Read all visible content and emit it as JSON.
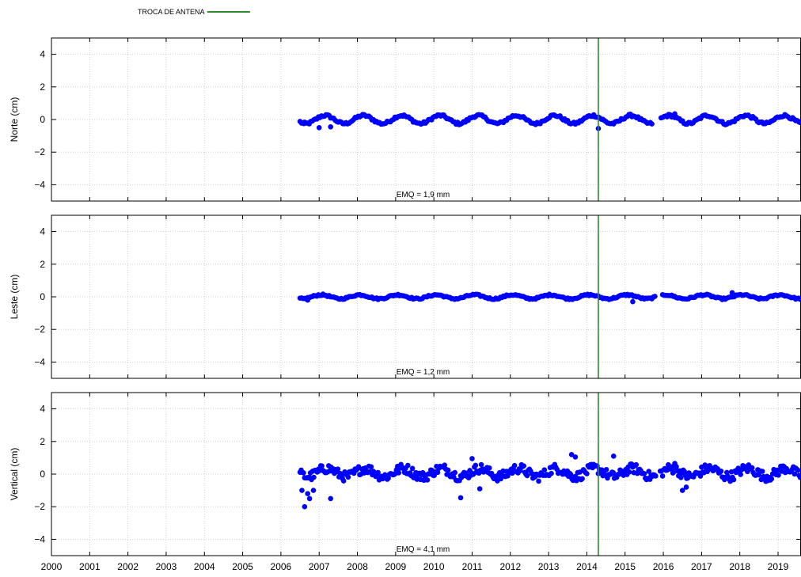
{
  "legend": {
    "label": "TROCA DE ANTENA",
    "color": "#2e8b2e"
  },
  "colors": {
    "points": "#0000ff",
    "event_line": "#2e8b2e",
    "grid": "#c8c8c8",
    "frame": "#000000"
  },
  "chart_data": [
    {
      "type": "scatter",
      "ylabel": "Norte (cm)",
      "xlim": [
        2000,
        2019.6
      ],
      "ylim": [
        -5,
        5
      ],
      "yticks": [
        4,
        2,
        0,
        -2,
        -4
      ],
      "ytick_labels": [
        "4",
        "2",
        "0",
        "−2",
        "−4"
      ],
      "annotation": "EMQ = 1,9 mm",
      "data_start": 2006.5,
      "data_end": 2019.6,
      "sample_step": 0.04,
      "baseline": 0,
      "amplitude": 0.25,
      "cycles_per_year": 1,
      "phase": 0.6,
      "noise": 0.08,
      "outliers": [
        [
          2006.6,
          -0.25
        ],
        [
          2007.0,
          -0.5
        ],
        [
          2007.3,
          -0.45
        ],
        [
          2014.3,
          -0.55
        ],
        [
          2016.3,
          0.35
        ]
      ],
      "gaps": [
        [
          2015.7,
          2015.9
        ]
      ],
      "grid": true,
      "event_x": 2014.3
    },
    {
      "type": "scatter",
      "ylabel": "Leste (cm)",
      "xlim": [
        2000,
        2019.6
      ],
      "ylim": [
        -5,
        5
      ],
      "yticks": [
        4,
        2,
        0,
        -2,
        -4
      ],
      "ytick_labels": [
        "4",
        "2",
        "0",
        "−2",
        "−4"
      ],
      "annotation": "EMQ = 1,2 mm",
      "data_start": 2006.5,
      "data_end": 2019.6,
      "sample_step": 0.04,
      "baseline": 0,
      "amplitude": 0.12,
      "cycles_per_year": 1,
      "phase": 1.2,
      "noise": 0.05,
      "outliers": [
        [
          2006.7,
          -0.2
        ],
        [
          2015.2,
          -0.3
        ],
        [
          2017.8,
          0.25
        ]
      ],
      "gaps": [
        [
          2015.8,
          2015.95
        ]
      ],
      "grid": true,
      "event_x": 2014.3
    },
    {
      "type": "scatter",
      "ylabel": "Vertical (cm)",
      "xlim": [
        2000,
        2019.6
      ],
      "ylim": [
        -5,
        5
      ],
      "yticks": [
        4,
        2,
        0,
        -2,
        -4
      ],
      "ytick_labels": [
        "4",
        "2",
        "0",
        "−2",
        "−4"
      ],
      "xticks": [
        2000,
        2001,
        2002,
        2003,
        2004,
        2005,
        2006,
        2007,
        2008,
        2009,
        2010,
        2011,
        2012,
        2013,
        2014,
        2015,
        2016,
        2017,
        2018,
        2019
      ],
      "xtick_labels": [
        "2000",
        "2001",
        "2002",
        "2003",
        "2004",
        "2005",
        "2006",
        "2007",
        "2008",
        "2009",
        "2010",
        "2011",
        "2012",
        "2013",
        "2014",
        "2015",
        "2016",
        "2017",
        "2018",
        "2019"
      ],
      "annotation": "EMQ = 4,1 mm",
      "data_start": 2006.5,
      "data_end": 2019.6,
      "sample_step": 0.03,
      "baseline": 0.1,
      "amplitude": 0.25,
      "cycles_per_year": 1,
      "phase": 0.3,
      "noise": 0.3,
      "outliers": [
        [
          2006.55,
          -1.0
        ],
        [
          2006.62,
          -2.0
        ],
        [
          2006.7,
          -1.2
        ],
        [
          2006.75,
          -1.5
        ],
        [
          2006.85,
          -1.0
        ],
        [
          2007.3,
          -1.5
        ],
        [
          2010.7,
          -1.45
        ],
        [
          2011.2,
          -0.9
        ],
        [
          2011.0,
          0.95
        ],
        [
          2013.6,
          1.2
        ],
        [
          2013.7,
          1.05
        ],
        [
          2014.7,
          1.1
        ],
        [
          2016.3,
          0.65
        ],
        [
          2016.5,
          -1.0
        ],
        [
          2016.6,
          -0.8
        ]
      ],
      "gaps": [
        [
          2015.8,
          2015.9
        ]
      ],
      "grid": true,
      "event_x": 2014.3
    }
  ]
}
